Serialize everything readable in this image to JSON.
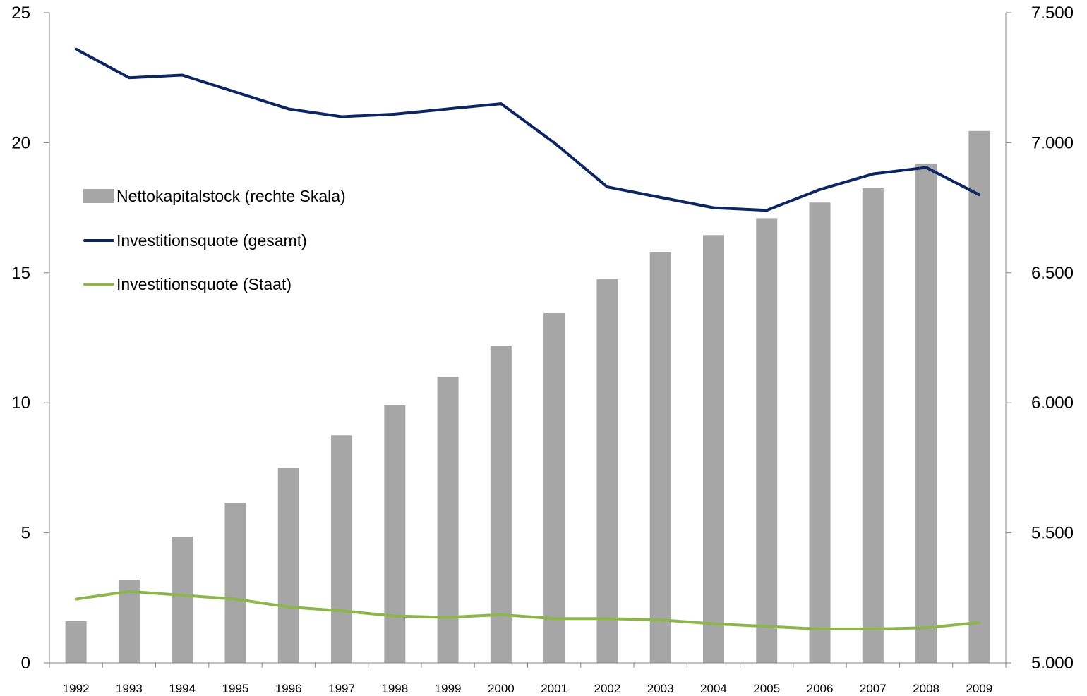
{
  "chart_data": {
    "type": "bar",
    "categories": [
      "1992",
      "1993",
      "1994",
      "1995",
      "1996",
      "1997",
      "1998",
      "1999",
      "2000",
      "2001",
      "2002",
      "2003",
      "2004",
      "2005",
      "2006",
      "2007",
      "2008",
      "2009"
    ],
    "series": [
      {
        "name": "Nettokapitalstock (rechte Skala)",
        "type": "bar",
        "axis": "right",
        "color": "#a6a6a6",
        "values": [
          5160,
          5320,
          5485,
          5615,
          5750,
          5875,
          5990,
          6100,
          6220,
          6345,
          6475,
          6580,
          6645,
          6710,
          6770,
          6825,
          6920,
          7045
        ]
      },
      {
        "name": "Investitionsquote (gesamt)",
        "type": "line",
        "axis": "left",
        "color": "#0d2561",
        "values": [
          23.6,
          22.5,
          22.6,
          21.95,
          21.3,
          21.0,
          21.1,
          21.3,
          21.5,
          20.0,
          18.3,
          17.9,
          17.5,
          17.4,
          18.2,
          18.8,
          19.05,
          18.0
        ]
      },
      {
        "name": "Investitionsquote (Staat)",
        "type": "line",
        "axis": "left",
        "color": "#8db54b",
        "values": [
          2.45,
          2.75,
          2.6,
          2.45,
          2.15,
          2.0,
          1.8,
          1.75,
          1.85,
          1.7,
          1.7,
          1.65,
          1.5,
          1.4,
          1.3,
          1.3,
          1.35,
          1.55
        ]
      }
    ],
    "y_left": {
      "min": 0,
      "max": 25,
      "ticks": [
        0,
        5,
        10,
        15,
        20,
        25
      ],
      "tick_labels": [
        "0",
        "5",
        "10",
        "15",
        "20",
        "25"
      ]
    },
    "y_right": {
      "min": 5000,
      "max": 7500,
      "ticks": [
        5000,
        5500,
        6000,
        6500,
        7000,
        7500
      ],
      "tick_labels": [
        "5.000",
        "5.500",
        "6.000",
        "6.500",
        "7.000",
        "7.500"
      ]
    },
    "legend_position": "upper-left",
    "grid": false
  }
}
